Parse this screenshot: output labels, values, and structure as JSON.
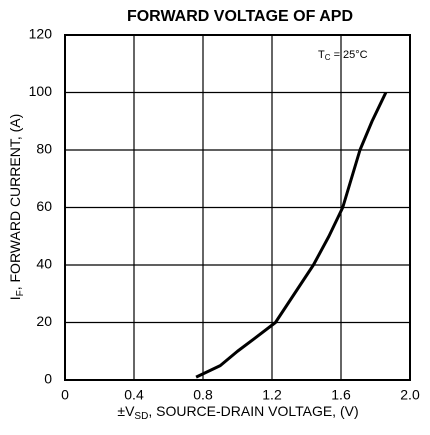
{
  "chart_data": {
    "type": "line",
    "title": "FORWARD VOLTAGE OF APD",
    "xlabel": {
      "main": "±V",
      "sub": "SD",
      "rest": ", SOURCE-DRAIN VOLTAGE, (V)"
    },
    "ylabel": {
      "main": "I",
      "sub": "F",
      "rest": ", FORWARD CURRENT, (A)"
    },
    "annotation": {
      "main": "T",
      "sub": "C",
      "rest": " = 25°C"
    },
    "x": [
      0.76,
      0.9,
      1.0,
      1.1,
      1.22,
      1.33,
      1.44,
      1.53,
      1.61,
      1.66,
      1.71,
      1.78,
      1.86
    ],
    "series": [
      {
        "color": "#000000",
        "values": [
          1,
          5,
          10,
          14.5,
          20,
          30,
          40,
          50,
          60,
          70,
          80,
          90,
          100
        ]
      }
    ],
    "xlim": [
      0,
      2
    ],
    "ylim": [
      0,
      120
    ],
    "xticks": [
      0,
      0.4,
      0.8,
      1.2,
      1.6,
      {
        "value": 2,
        "label": "2.0"
      }
    ],
    "yticks": [
      0,
      20,
      40,
      60,
      80,
      100,
      120
    ],
    "grid": true
  }
}
